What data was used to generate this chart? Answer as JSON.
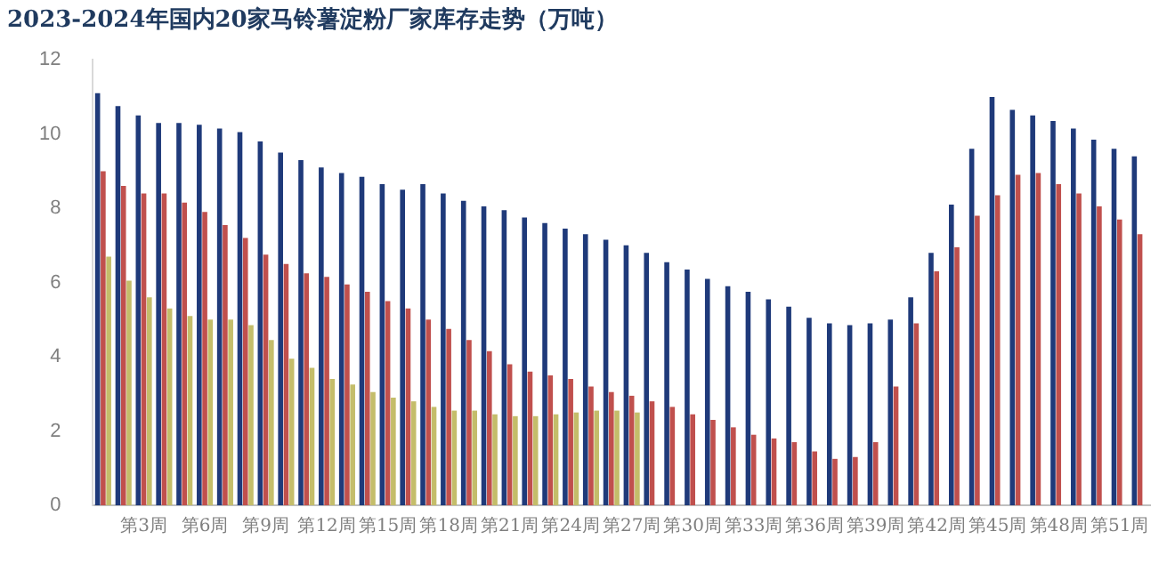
{
  "chart_data": {
    "type": "bar",
    "title": "2023-2024年国内20家马铃薯淀粉厂家库存走势（万吨）",
    "categories": [
      null,
      null,
      "第3周",
      null,
      null,
      "第6周",
      null,
      null,
      "第9周",
      null,
      null,
      "第12周",
      null,
      null,
      "第15周",
      null,
      null,
      "第18周",
      null,
      null,
      "第21周",
      null,
      null,
      "第24周",
      null,
      null,
      "第27周",
      null,
      null,
      "第30周",
      null,
      null,
      "第33周",
      null,
      null,
      "第36周",
      null,
      null,
      "第39周",
      null,
      null,
      "第42周",
      null,
      null,
      "第45周",
      null,
      null,
      "第48周",
      null,
      null,
      "第51周",
      null
    ],
    "series": [
      {
        "color": "#1f3a7a",
        "values": [
          11.1,
          10.75,
          10.5,
          10.3,
          10.3,
          10.25,
          10.15,
          10.05,
          9.8,
          9.5,
          9.3,
          9.1,
          8.95,
          8.85,
          8.65,
          8.5,
          8.65,
          8.4,
          8.2,
          8.05,
          7.95,
          7.75,
          7.6,
          7.45,
          7.3,
          7.15,
          7.0,
          6.8,
          6.55,
          6.35,
          6.1,
          5.9,
          5.75,
          5.55,
          5.35,
          5.05,
          4.9,
          4.85,
          4.9,
          5.0,
          5.6,
          6.8,
          8.1,
          9.6,
          11.0,
          10.65,
          10.5,
          10.35,
          10.15,
          9.85,
          9.6,
          9.4
        ]
      },
      {
        "color": "#c0504d",
        "values": [
          9.0,
          8.6,
          8.4,
          8.4,
          8.15,
          7.9,
          7.55,
          7.2,
          6.75,
          6.5,
          6.25,
          6.15,
          5.95,
          5.75,
          5.5,
          5.3,
          5.0,
          4.75,
          4.45,
          4.15,
          3.8,
          3.6,
          3.5,
          3.4,
          3.2,
          3.05,
          2.95,
          2.8,
          2.65,
          2.45,
          2.3,
          2.1,
          1.9,
          1.8,
          1.7,
          1.45,
          1.25,
          1.3,
          1.7,
          3.2,
          4.9,
          6.3,
          6.95,
          7.8,
          8.35,
          8.9,
          8.95,
          8.65,
          8.4,
          8.05,
          7.7,
          7.3
        ]
      },
      {
        "color": "#c4bd6a",
        "values": [
          6.7,
          6.05,
          5.6,
          5.3,
          5.1,
          5.0,
          5.0,
          4.85,
          4.45,
          3.95,
          3.7,
          3.4,
          3.25,
          3.05,
          2.9,
          2.8,
          2.65,
          2.55,
          2.55,
          2.45,
          2.4,
          2.4,
          2.45,
          2.5,
          2.55,
          2.55,
          2.5,
          null,
          null,
          null,
          null,
          null,
          null,
          null,
          null,
          null,
          null,
          null,
          null,
          null,
          null,
          null,
          null,
          null,
          null,
          null,
          null,
          null,
          null,
          null,
          null,
          null
        ]
      }
    ],
    "ylim": [
      0,
      12
    ],
    "yticks": [
      0,
      2,
      4,
      6,
      8,
      10,
      12
    ],
    "grid": false,
    "legend": false
  }
}
